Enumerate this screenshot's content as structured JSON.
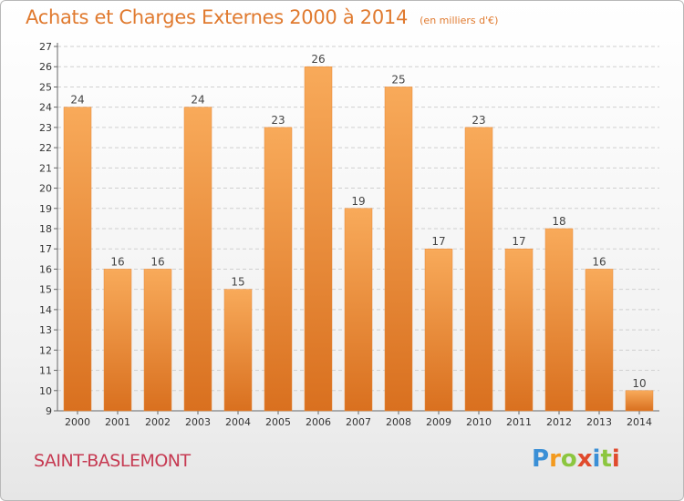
{
  "header": {
    "title": "Achats et Charges Externes 2000 à 2014",
    "subtitle": "(en milliers d'€)"
  },
  "footer": {
    "commune": "SAINT-BASLEMONT",
    "logo_letters": [
      "P",
      "r",
      "o",
      "x",
      "i",
      "t",
      "i"
    ],
    "logo_colors": [
      "#3a8fd6",
      "#f39a1e",
      "#8cc63f",
      "#e04a2c",
      "#3a8fd6",
      "#8cc63f",
      "#e04a2c"
    ]
  },
  "colors": {
    "bar_top": "#f8aa5a",
    "bar_bottom": "#d9701f",
    "title": "#e07a2f",
    "commune": "#c63a52",
    "grid": "#d0d0d0"
  },
  "chart_data": {
    "type": "bar",
    "title": "Achats et Charges Externes 2000 à 2014",
    "subtitle": "(en milliers d'€)",
    "categories": [
      "2000",
      "2001",
      "2002",
      "2003",
      "2004",
      "2005",
      "2006",
      "2007",
      "2008",
      "2009",
      "2010",
      "2011",
      "2012",
      "2013",
      "2014"
    ],
    "values": [
      24,
      16,
      16,
      24,
      15,
      23,
      26,
      19,
      25,
      17,
      23,
      17,
      18,
      16,
      10
    ],
    "ylim": [
      9,
      27
    ],
    "yticks": [
      9,
      10,
      11,
      12,
      13,
      14,
      15,
      16,
      17,
      18,
      19,
      20,
      21,
      22,
      23,
      24,
      25,
      26,
      27
    ],
    "grid": true,
    "data_labels": true
  }
}
